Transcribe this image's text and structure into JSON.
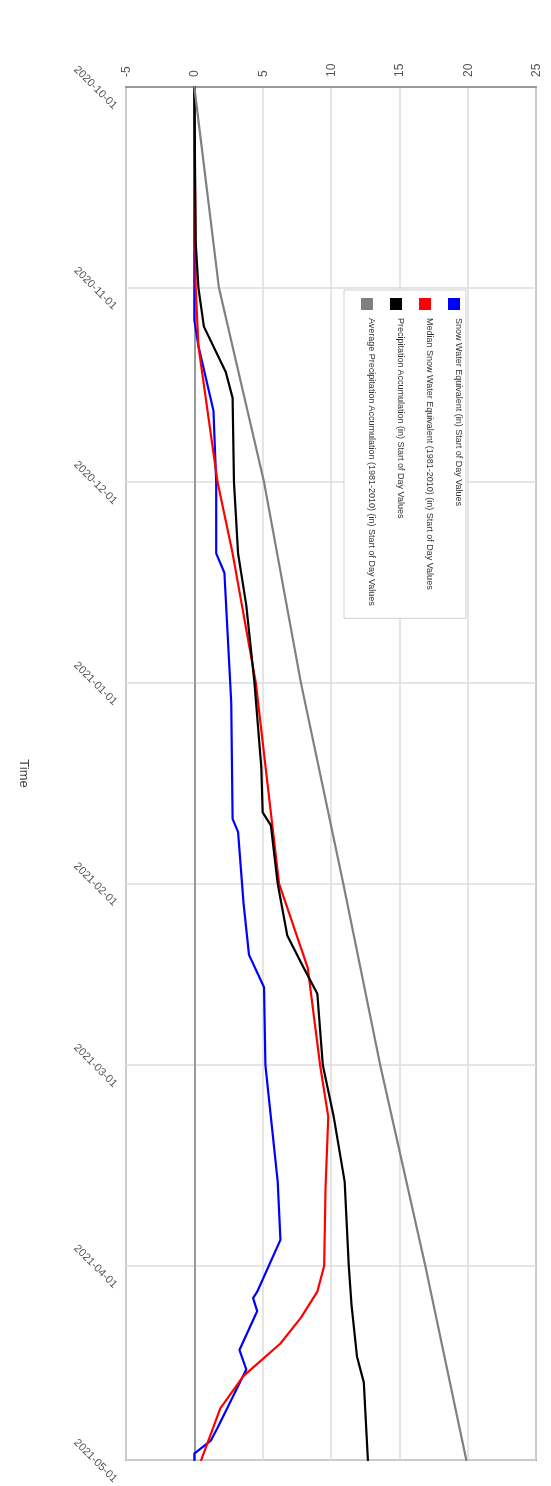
{
  "chart_data": {
    "type": "line",
    "orientation": "horizontal",
    "ylabel": "Time",
    "ylim": [
      "2021-05-01",
      "2020-10-01"
    ],
    "yticks": [
      "2020-10-01",
      "2020-11-01",
      "2020-12-01",
      "2021-01-01",
      "2021-02-01",
      "2021-03-01",
      "2021-04-01",
      "2021-05-01"
    ],
    "xlim": [
      -5,
      25
    ],
    "xticks": [
      -5,
      0,
      5,
      10,
      15,
      20,
      25
    ],
    "grid": true,
    "legend": "top right",
    "marker": "none",
    "line_style": "solid",
    "series": [
      {
        "name": "Snow Water Equivalent (in) Start of Day Values",
        "color": "#0000ff",
        "x": [
          "2020-10-01",
          "2020-11-06",
          "2020-11-10",
          "2020-11-20",
          "2020-12-01",
          "2020-12-12",
          "2020-12-15",
          "2021-01-04",
          "2021-01-22",
          "2021-01-24",
          "2021-02-04",
          "2021-02-12",
          "2021-02-17",
          "2021-03-01",
          "2021-03-09",
          "2021-03-19",
          "2021-03-28",
          "2021-04-05",
          "2021-04-06",
          "2021-04-08",
          "2021-04-14",
          "2021-04-17",
          "2021-04-26",
          "2021-04-28",
          "2021-04-30",
          "2021-05-01"
        ],
        "values": [
          0,
          0,
          0.3,
          1.4,
          1.6,
          1.6,
          2.2,
          2.7,
          2.8,
          3.2,
          3.6,
          4.0,
          5.1,
          5.2,
          5.6,
          6.1,
          6.3,
          4.6,
          4.3,
          4.6,
          3.3,
          3.8,
          1.7,
          1.2,
          0,
          0
        ]
      },
      {
        "name": "Median Snow Water Equivalent (1981-2010) (in) Start of Day Values",
        "color": "#ff0000",
        "x": [
          "2020-10-01",
          "2020-11-01",
          "2020-11-10",
          "2020-12-01",
          "2020-12-12",
          "2021-01-01",
          "2021-02-01",
          "2021-02-14",
          "2021-03-01",
          "2021-03-09",
          "2021-03-20",
          "2021-04-01",
          "2021-04-05",
          "2021-04-09",
          "2021-04-13",
          "2021-04-18",
          "2021-04-23",
          "2021-05-01"
        ],
        "values": [
          0,
          0.1,
          0.3,
          1.7,
          2.8,
          4.5,
          6.2,
          8.3,
          9.2,
          9.8,
          9.6,
          9.5,
          9.0,
          7.8,
          6.3,
          3.6,
          1.9,
          0.5
        ]
      },
      {
        "name": "Precipitation Accumulation (in) Start of Day Values",
        "color": "#000000",
        "x": [
          "2020-10-01",
          "2020-10-25",
          "2020-11-01",
          "2020-11-07",
          "2020-11-14",
          "2020-11-18",
          "2020-12-01",
          "2020-12-12",
          "2020-12-20",
          "2021-01-01",
          "2021-01-14",
          "2021-01-21",
          "2021-01-23",
          "2021-02-01",
          "2021-02-09",
          "2021-02-14",
          "2021-02-18",
          "2021-03-01",
          "2021-03-09",
          "2021-03-19",
          "2021-04-01",
          "2021-04-07",
          "2021-04-15",
          "2021-04-19",
          "2021-05-01"
        ],
        "values": [
          0,
          0.1,
          0.3,
          0.7,
          2.3,
          2.8,
          2.9,
          3.2,
          3.8,
          4.4,
          4.9,
          5.0,
          5.6,
          6.1,
          6.8,
          8.0,
          9.0,
          9.4,
          10.2,
          11.0,
          11.3,
          11.5,
          11.9,
          12.4,
          12.7
        ]
      },
      {
        "name": "Average Precipitation Accumulation (1981-2010) (in) Start of Day Values",
        "color": "#808080",
        "x": [
          "2020-10-01",
          "2020-11-01",
          "2020-12-01",
          "2021-01-01",
          "2021-02-01",
          "2021-03-01",
          "2021-04-01",
          "2021-05-01"
        ],
        "values": [
          0,
          1.8,
          5.1,
          7.8,
          10.9,
          13.6,
          16.9,
          19.9
        ]
      }
    ]
  }
}
